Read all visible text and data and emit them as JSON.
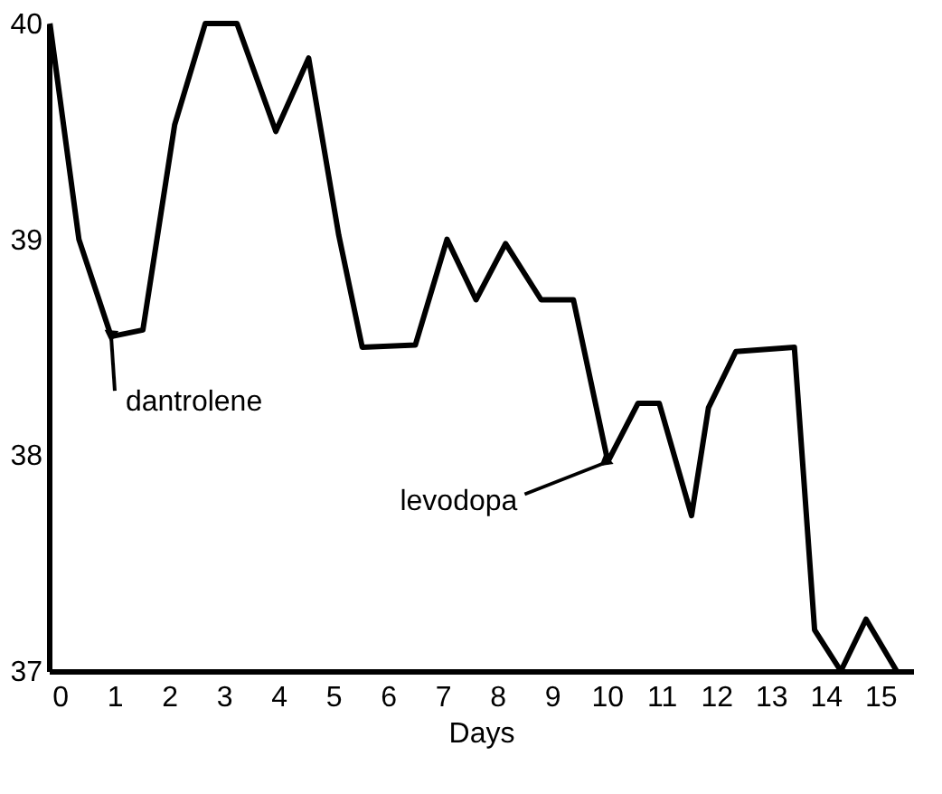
{
  "chart_data": {
    "type": "line",
    "xlabel": "Days",
    "x": [
      -0.18,
      0.35,
      0.94,
      1.52,
      2.1,
      2.66,
      3.24,
      3.95,
      4.55,
      5.1,
      5.53,
      6.5,
      7.08,
      7.61,
      8.15,
      8.8,
      9.39,
      10.02,
      10.57,
      10.96,
      11.55,
      11.86,
      12.36,
      13.43,
      13.8,
      14.28,
      14.74,
      15.3
    ],
    "series": [
      {
        "color": "#000000",
        "values": [
          40.0,
          39.0,
          38.55,
          38.58,
          39.53,
          40.0,
          40.0,
          39.5,
          39.84,
          39.02,
          38.5,
          38.51,
          39.0,
          38.72,
          38.98,
          38.72,
          38.72,
          37.97,
          38.24,
          38.24,
          37.72,
          38.22,
          38.48,
          38.5,
          37.19,
          37.0,
          37.24,
          37.0
        ]
      }
    ],
    "xlim": [
      -0.2,
      15.6
    ],
    "xticks": [
      0,
      1,
      2,
      3,
      4,
      5,
      6,
      7,
      8,
      9,
      10,
      11,
      12,
      13,
      14,
      15
    ],
    "ylim": [
      37,
      40
    ],
    "yticks": [
      37,
      38,
      39,
      40
    ],
    "annotations": [
      {
        "text": "dantrolene",
        "x": 0.94,
        "y": 38.55
      },
      {
        "text": "levodopa",
        "x": 10.02,
        "y": 37.97
      }
    ],
    "grid": false,
    "marker": "none",
    "line_style": "solid"
  }
}
